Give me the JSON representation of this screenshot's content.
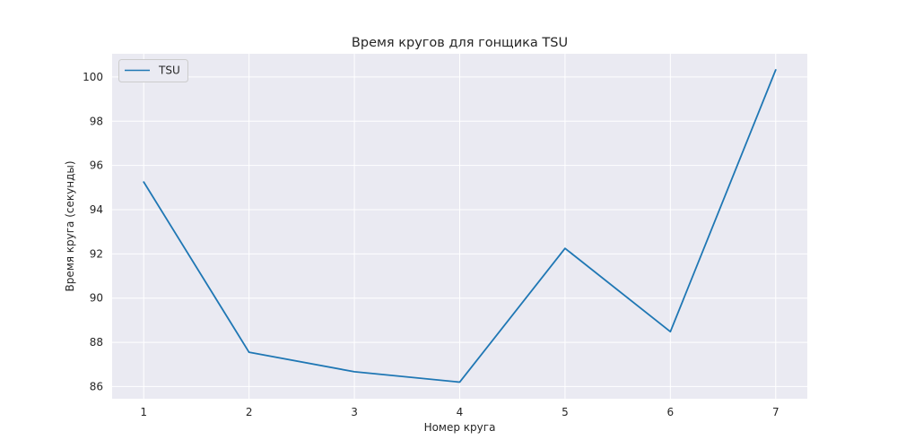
{
  "chart_data": {
    "type": "line",
    "title": "Время кругов для гонщика TSU",
    "xlabel": "Номер круга",
    "ylabel": "Время круга (секунды)",
    "x": [
      1,
      2,
      3,
      4,
      5,
      6,
      7
    ],
    "xticks": [
      "1",
      "2",
      "3",
      "4",
      "5",
      "6",
      "7"
    ],
    "yticks": [
      "86",
      "88",
      "90",
      "92",
      "94",
      "96",
      "98",
      "100"
    ],
    "xlim": [
      0.7,
      7.3
    ],
    "ylim": [
      85.45,
      101.05
    ],
    "grid": true,
    "legend_position": "top-left",
    "series": [
      {
        "name": "TSU",
        "color": "#1f77b4",
        "values": [
          95.25,
          87.55,
          86.67,
          86.2,
          92.25,
          88.48,
          100.32
        ]
      }
    ]
  }
}
